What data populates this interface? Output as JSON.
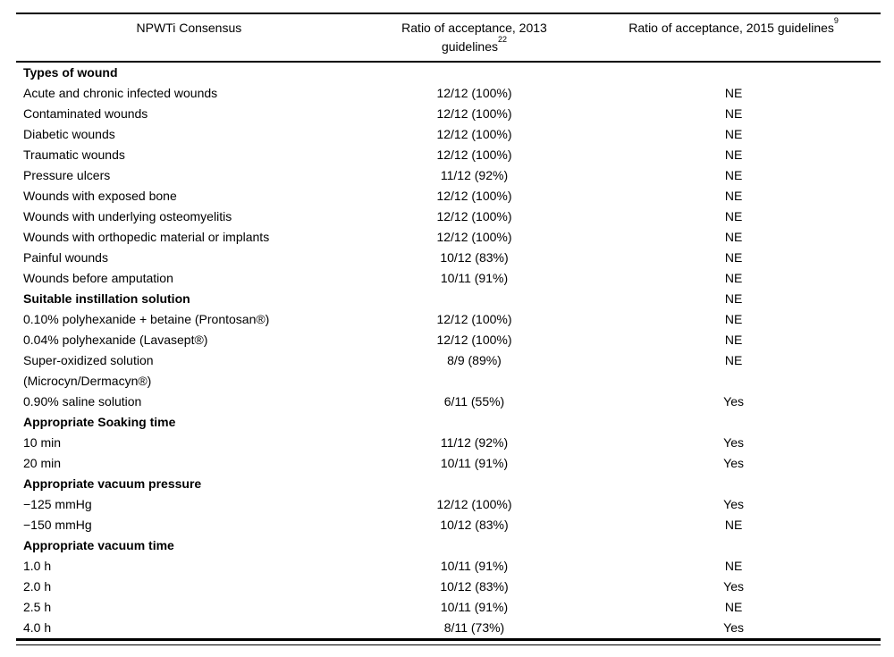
{
  "page": {
    "background_color": "#ffffff",
    "text_color": "#000000"
  },
  "table": {
    "header": {
      "col1": "NPWTi Consensus",
      "col2_line1": "Ratio of acceptance, 2013",
      "col2_line2": "guidelines",
      "col2_sup": "22",
      "col3": "Ratio of acceptance, 2015 guidelines",
      "col3_sup": "9"
    },
    "rows": [
      {
        "type": "section",
        "label": "Types of wound",
        "ratio2013": "",
        "ratio2015": ""
      },
      {
        "type": "data",
        "label": "Acute and chronic infected wounds",
        "ratio2013": "12/12 (100%)",
        "ratio2015": "NE"
      },
      {
        "type": "data",
        "label": "Contaminated wounds",
        "ratio2013": "12/12 (100%)",
        "ratio2015": "NE"
      },
      {
        "type": "data",
        "label": "Diabetic wounds",
        "ratio2013": "12/12 (100%)",
        "ratio2015": "NE"
      },
      {
        "type": "data",
        "label": "Traumatic wounds",
        "ratio2013": "12/12 (100%)",
        "ratio2015": "NE"
      },
      {
        "type": "data",
        "label": "Pressure ulcers",
        "ratio2013": "11/12 (92%)",
        "ratio2015": "NE"
      },
      {
        "type": "data",
        "label": "Wounds with exposed bone",
        "ratio2013": "12/12 (100%)",
        "ratio2015": "NE"
      },
      {
        "type": "data",
        "label": "Wounds with underlying osteomyelitis",
        "ratio2013": "12/12 (100%)",
        "ratio2015": "NE"
      },
      {
        "type": "data",
        "label": "Wounds with orthopedic material or implants",
        "ratio2013": "12/12 (100%)",
        "ratio2015": "NE"
      },
      {
        "type": "data",
        "label": "Painful wounds",
        "ratio2013": "10/12 (83%)",
        "ratio2015": "NE"
      },
      {
        "type": "data",
        "label": "Wounds before amputation",
        "ratio2013": "10/11 (91%)",
        "ratio2015": "NE"
      },
      {
        "type": "section",
        "label": "Suitable instillation solution",
        "ratio2013": "",
        "ratio2015": "NE"
      },
      {
        "type": "data",
        "label": "0.10% polyhexanide + betaine (Prontosan®)",
        "ratio2013": "12/12 (100%)",
        "ratio2015": "NE"
      },
      {
        "type": "data",
        "label": "0.04% polyhexanide (Lavasept®)",
        "ratio2013": "12/12 (100%)",
        "ratio2015": "NE"
      },
      {
        "type": "data",
        "label": "Super-oxidized solution\n(Microcyn/Dermacyn®)",
        "ratio2013": "8/9 (89%)",
        "ratio2015": "NE"
      },
      {
        "type": "data",
        "label": "0.90% saline solution",
        "ratio2013": "6/11 (55%)",
        "ratio2015": "Yes"
      },
      {
        "type": "section",
        "label": "Appropriate Soaking time",
        "ratio2013": "",
        "ratio2015": ""
      },
      {
        "type": "data",
        "label": "10 min",
        "ratio2013": "11/12 (92%)",
        "ratio2015": "Yes"
      },
      {
        "type": "data",
        "label": "20 min",
        "ratio2013": "10/11 (91%)",
        "ratio2015": "Yes"
      },
      {
        "type": "section",
        "label": "Appropriate vacuum pressure",
        "ratio2013": "",
        "ratio2015": ""
      },
      {
        "type": "data",
        "label": "−125 mmHg",
        "ratio2013": "12/12 (100%)",
        "ratio2015": "Yes"
      },
      {
        "type": "data",
        "label": "−150 mmHg",
        "ratio2013": "10/12 (83%)",
        "ratio2015": "NE"
      },
      {
        "type": "section",
        "label": "Appropriate vacuum time",
        "ratio2013": "",
        "ratio2015": ""
      },
      {
        "type": "data",
        "label": "1.0 h",
        "ratio2013": "10/11 (91%)",
        "ratio2015": "NE"
      },
      {
        "type": "data",
        "label": "2.0 h",
        "ratio2013": "10/12 (83%)",
        "ratio2015": "Yes"
      },
      {
        "type": "data",
        "label": "2.5 h",
        "ratio2013": "10/11 (91%)",
        "ratio2015": "NE"
      },
      {
        "type": "data",
        "label": "4.0 h",
        "ratio2013": "8/11 (73%)",
        "ratio2015": "Yes"
      }
    ]
  }
}
